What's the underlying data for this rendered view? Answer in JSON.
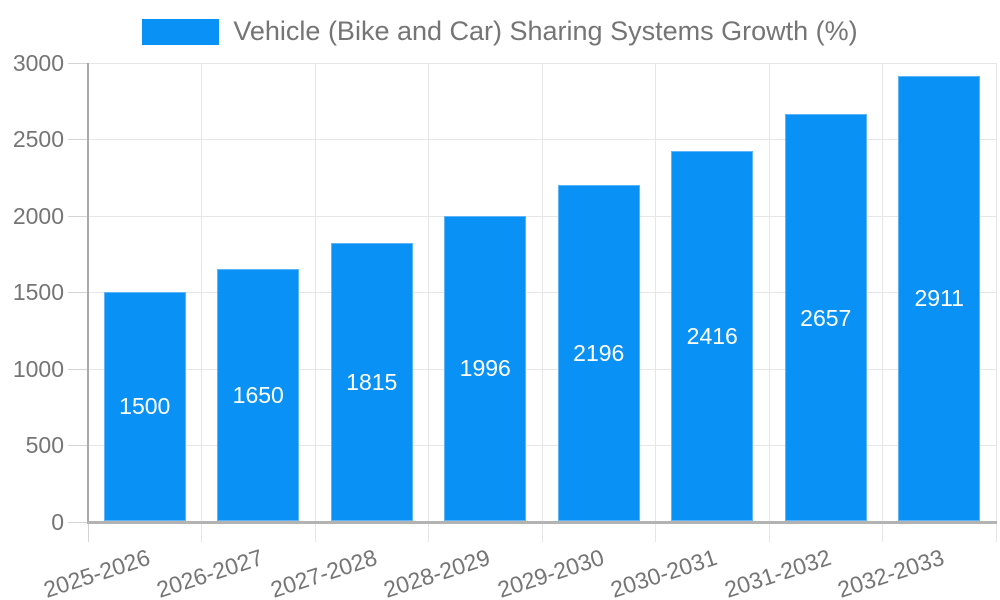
{
  "legend": {
    "label": "Vehicle (Bike and Car) Sharing Systems Growth (%)"
  },
  "colors": {
    "bar": "#0a91f5",
    "bar_edge": "#5fb4f7",
    "grid": "#e6e6e6",
    "tick": "#d4d4d4",
    "axis": "#a9a9a9",
    "text": "#757575",
    "value_label": "#ffffff",
    "background": "#ffffff"
  },
  "chart_data": {
    "type": "bar",
    "title": "Vehicle (Bike and Car) Sharing Systems Growth (%)",
    "categories": [
      "2025-2026",
      "2026-2027",
      "2027-2028",
      "2028-2029",
      "2029-2030",
      "2030-2031",
      "2031-2032",
      "2032-2033"
    ],
    "values": [
      1500,
      1650,
      1815,
      1996,
      2196,
      2416,
      2657,
      2911
    ],
    "bar_labels": [
      1500,
      1650,
      1815,
      1996,
      2196,
      2416,
      2657,
      2911
    ],
    "xlabel": "",
    "ylabel": "",
    "ylim": [
      0,
      3000
    ],
    "ytick_step": 500,
    "ytick_labels": [
      "0",
      "500",
      "1000",
      "1500",
      "2000",
      "2500",
      "3000"
    ],
    "grid": true,
    "legend_position": "top",
    "xtick_rotation": -18
  }
}
